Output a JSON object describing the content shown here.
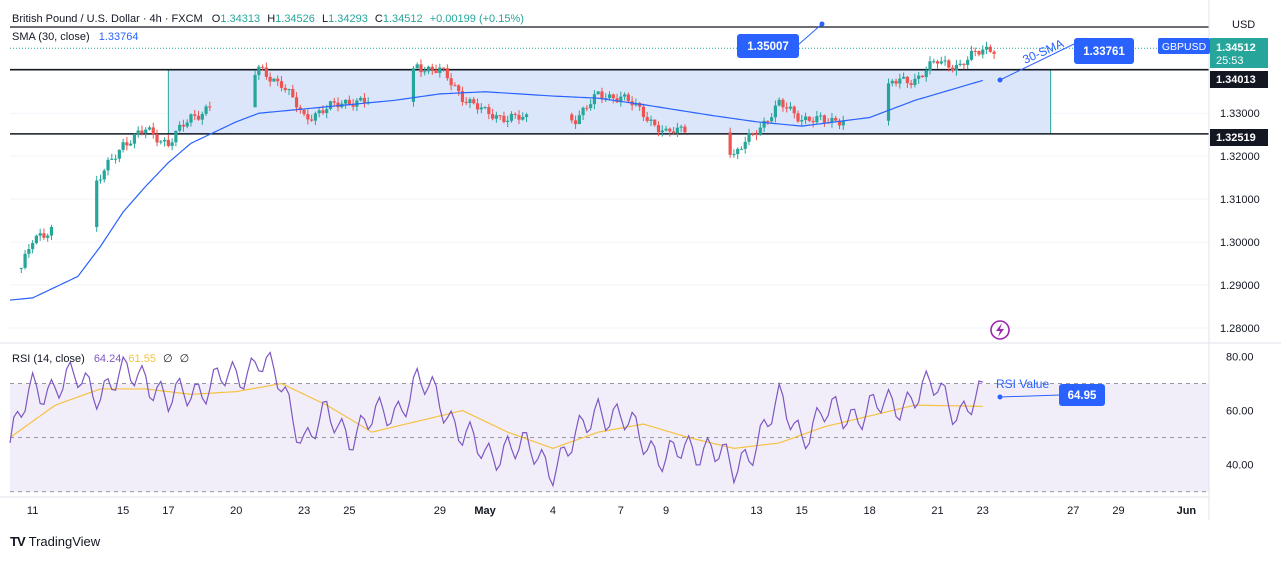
{
  "header": {
    "symbol_title": "British Pound / U.S. Dollar · 4h · FXCM",
    "ohlc": {
      "o_label": "O",
      "o": "1.34313",
      "h_label": "H",
      "h": "1.34526",
      "l_label": "L",
      "l": "1.34293",
      "c_label": "C",
      "c": "1.34512",
      "change": "+0.00199 (+0.15%)"
    },
    "sma_label": "SMA (30, close)",
    "sma_value": "1.33764",
    "rsi_label": "RSI (14, close)",
    "rsi_value": "64.24",
    "rsi_ma_value": "61.55",
    "rsi_extra_1": "∅",
    "rsi_extra_2": "∅"
  },
  "axis": {
    "currency": "USD",
    "price_ticks": [
      "1.33000",
      "1.32000",
      "1.31000",
      "1.30000",
      "1.29000",
      "1.28000"
    ],
    "rsi_ticks": [
      "80.00",
      "60.00",
      "40.00"
    ],
    "x_ticks": [
      "11",
      "15",
      "17",
      "20",
      "23",
      "25",
      "29",
      "May",
      "4",
      "7",
      "9",
      "13",
      "15",
      "18",
      "21",
      "23",
      "27",
      "29",
      "Jun"
    ]
  },
  "badges": {
    "symbol": "GBPUSD",
    "last_price": "1.34512",
    "countdown": "25:53",
    "level_upper": "1.34013",
    "level_lower": "1.32519"
  },
  "annotations": {
    "target_value": "1.35007",
    "sma_callout_label": "30-SMA",
    "sma_callout_value": "1.33761",
    "rsi_callout_label": "RSI Value",
    "rsi_callout_value": "64.95"
  },
  "footer": {
    "brand_logo": "TV",
    "brand": "TradingView"
  },
  "colors": {
    "up": "#26a69a",
    "down": "#ef5350",
    "sma": "#2962ff",
    "rsi": "#7e57c2",
    "rsi_ma": "#f5c242",
    "range_fill": "#dbe6fb",
    "callout": "#2962ff"
  },
  "chart_data": {
    "type": "candlestick",
    "timeframe": "4h",
    "price_range": [
      1.2765,
      1.3545
    ],
    "rsi_range": [
      28,
      85
    ],
    "range_box": {
      "top": 1.34013,
      "bottom": 1.32519,
      "start_day": "2025-04-17",
      "end_day": "2025-05-26"
    },
    "horizontal_lines": [
      1.35007,
      1.34013,
      1.32519
    ],
    "rsi_bands": [
      70,
      50,
      30
    ],
    "sma_period": 30,
    "price_path": [
      [
        "2025-04-10",
        1.288
      ],
      [
        "2025-04-11",
        1.3
      ],
      [
        "2025-04-13",
        1.308
      ],
      [
        "2025-04-14",
        1.315
      ],
      [
        "2025-04-15",
        1.323
      ],
      [
        "2025-04-16",
        1.326
      ],
      [
        "2025-04-17",
        1.323
      ],
      [
        "2025-04-18",
        1.329
      ],
      [
        "2025-04-20",
        1.335
      ],
      [
        "2025-04-21",
        1.34
      ],
      [
        "2025-04-22",
        1.337
      ],
      [
        "2025-04-23",
        1.329
      ],
      [
        "2025-04-24",
        1.331
      ],
      [
        "2025-04-25",
        1.333
      ],
      [
        "2025-04-27",
        1.332
      ],
      [
        "2025-04-28",
        1.341
      ],
      [
        "2025-04-29",
        1.34
      ],
      [
        "2025-04-30",
        1.334
      ],
      [
        "2025-05-01",
        1.33
      ],
      [
        "2025-05-02",
        1.329
      ],
      [
        "2025-05-04",
        1.328
      ],
      [
        "2025-05-05",
        1.329
      ],
      [
        "2025-05-06",
        1.334
      ],
      [
        "2025-05-07",
        1.334
      ],
      [
        "2025-05-08",
        1.33
      ],
      [
        "2025-05-09",
        1.325
      ],
      [
        "2025-05-11",
        1.329
      ],
      [
        "2025-05-12",
        1.32
      ],
      [
        "2025-05-13",
        1.326
      ],
      [
        "2025-05-14",
        1.332
      ],
      [
        "2025-05-15",
        1.329
      ],
      [
        "2025-05-16",
        1.328
      ],
      [
        "2025-05-18",
        1.33
      ],
      [
        "2025-05-19",
        1.337
      ],
      [
        "2025-05-20",
        1.338
      ],
      [
        "2025-05-21",
        1.342
      ],
      [
        "2025-05-22",
        1.341
      ],
      [
        "2025-05-23",
        1.34512
      ]
    ],
    "sma_path": [
      [
        "2025-04-10",
        1.2865
      ],
      [
        "2025-04-11",
        1.287
      ],
      [
        "2025-04-13",
        1.292
      ],
      [
        "2025-04-14",
        1.299
      ],
      [
        "2025-04-15",
        1.307
      ],
      [
        "2025-04-16",
        1.313
      ],
      [
        "2025-04-17",
        1.3185
      ],
      [
        "2025-04-18",
        1.323
      ],
      [
        "2025-04-20",
        1.328
      ],
      [
        "2025-04-21",
        1.33
      ],
      [
        "2025-04-23",
        1.331
      ],
      [
        "2025-04-25",
        1.332
      ],
      [
        "2025-04-27",
        1.333
      ],
      [
        "2025-04-29",
        1.3345
      ],
      [
        "2025-05-01",
        1.335
      ],
      [
        "2025-05-04",
        1.334
      ],
      [
        "2025-05-06",
        1.3335
      ],
      [
        "2025-05-08",
        1.332
      ],
      [
        "2025-05-11",
        1.3295
      ],
      [
        "2025-05-13",
        1.328
      ],
      [
        "2025-05-15",
        1.327
      ],
      [
        "2025-05-18",
        1.329
      ],
      [
        "2025-05-20",
        1.333
      ],
      [
        "2025-05-23",
        1.33764
      ]
    ],
    "rsi_path": [
      [
        "2025-04-10",
        48
      ],
      [
        "2025-04-11",
        68
      ],
      [
        "2025-04-13",
        71
      ],
      [
        "2025-04-14",
        68
      ],
      [
        "2025-04-15",
        72
      ],
      [
        "2025-04-16",
        74
      ],
      [
        "2025-04-17",
        62
      ],
      [
        "2025-04-18",
        68
      ],
      [
        "2025-04-20",
        72
      ],
      [
        "2025-04-21",
        80
      ],
      [
        "2025-04-22",
        68
      ],
      [
        "2025-04-23",
        50
      ],
      [
        "2025-04-24",
        57
      ],
      [
        "2025-04-25",
        52
      ],
      [
        "2025-04-27",
        60
      ],
      [
        "2025-04-28",
        70
      ],
      [
        "2025-04-29",
        64
      ],
      [
        "2025-04-30",
        52
      ],
      [
        "2025-05-01",
        42
      ],
      [
        "2025-05-02",
        48
      ],
      [
        "2025-05-04",
        40
      ],
      [
        "2025-05-05",
        48
      ],
      [
        "2025-05-06",
        62
      ],
      [
        "2025-05-07",
        56
      ],
      [
        "2025-05-08",
        50
      ],
      [
        "2025-05-09",
        42
      ],
      [
        "2025-05-11",
        48
      ],
      [
        "2025-05-12",
        36
      ],
      [
        "2025-05-13",
        50
      ],
      [
        "2025-05-14",
        62
      ],
      [
        "2025-05-15",
        52
      ],
      [
        "2025-05-16",
        58
      ],
      [
        "2025-05-18",
        60
      ],
      [
        "2025-05-19",
        62
      ],
      [
        "2025-05-20",
        66
      ],
      [
        "2025-05-21",
        68
      ],
      [
        "2025-05-22",
        60
      ],
      [
        "2025-05-23",
        64.24
      ]
    ],
    "rsi_ma_path": [
      [
        "2025-04-10",
        50
      ],
      [
        "2025-04-12",
        62
      ],
      [
        "2025-04-14",
        68
      ],
      [
        "2025-04-16",
        68
      ],
      [
        "2025-04-18",
        66
      ],
      [
        "2025-04-20",
        67
      ],
      [
        "2025-04-22",
        70
      ],
      [
        "2025-04-24",
        62
      ],
      [
        "2025-04-26",
        52
      ],
      [
        "2025-04-28",
        56
      ],
      [
        "2025-04-30",
        60
      ],
      [
        "2025-05-02",
        52
      ],
      [
        "2025-05-04",
        46
      ],
      [
        "2025-05-06",
        52
      ],
      [
        "2025-05-08",
        55
      ],
      [
        "2025-05-10",
        50
      ],
      [
        "2025-05-12",
        46
      ],
      [
        "2025-05-14",
        48
      ],
      [
        "2025-05-16",
        54
      ],
      [
        "2025-05-18",
        58
      ],
      [
        "2025-05-20",
        62
      ],
      [
        "2025-05-23",
        61.55
      ]
    ]
  }
}
